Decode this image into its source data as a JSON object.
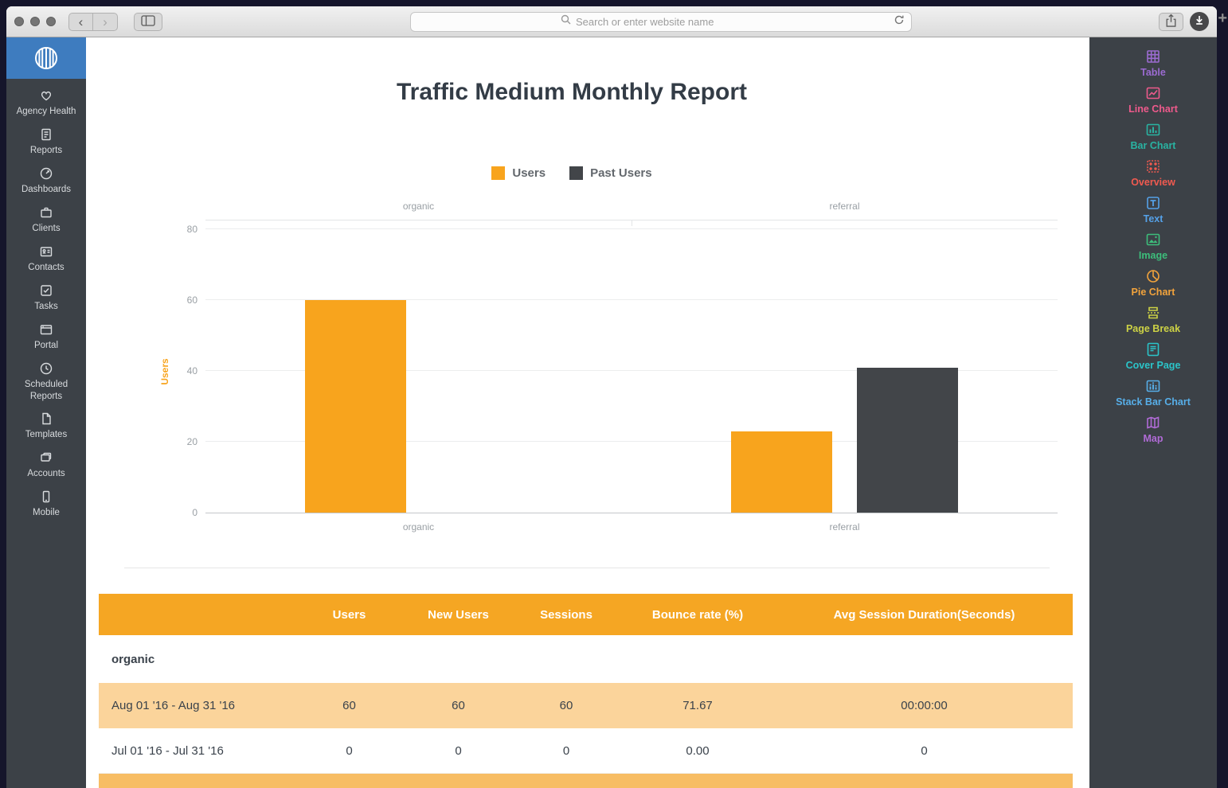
{
  "browser": {
    "url_placeholder": "Search or enter website name",
    "back_glyph": "‹",
    "forward_glyph": "›",
    "new_tab_glyph": "+"
  },
  "sidebar": {
    "items": [
      {
        "icon": "heart",
        "label": "Agency Health"
      },
      {
        "icon": "report",
        "label": "Reports"
      },
      {
        "icon": "gauge",
        "label": "Dashboards"
      },
      {
        "icon": "briefcase",
        "label": "Clients"
      },
      {
        "icon": "contact-card",
        "label": "Contacts"
      },
      {
        "icon": "check-square",
        "label": "Tasks"
      },
      {
        "icon": "window",
        "label": "Portal"
      },
      {
        "icon": "clock",
        "label": "Scheduled Reports"
      },
      {
        "icon": "document",
        "label": "Templates"
      },
      {
        "icon": "cards",
        "label": "Accounts"
      },
      {
        "icon": "phone",
        "label": "Mobile"
      }
    ]
  },
  "widgets": {
    "items": [
      {
        "icon": "grid",
        "label": "Table",
        "color": "#9B6BD1"
      },
      {
        "icon": "line-chart",
        "label": "Line Chart",
        "color": "#EE5A8C"
      },
      {
        "icon": "bar-chart",
        "label": "Bar Chart",
        "color": "#29B3A2"
      },
      {
        "icon": "overview",
        "label": "Overview",
        "color": "#F05A50"
      },
      {
        "icon": "text",
        "label": "Text",
        "color": "#55A1E8"
      },
      {
        "icon": "image",
        "label": "Image",
        "color": "#3DBE7B"
      },
      {
        "icon": "pie-chart",
        "label": "Pie Chart",
        "color": "#F2A33C"
      },
      {
        "icon": "page-break",
        "label": "Page Break",
        "color": "#CDD245"
      },
      {
        "icon": "cover-page",
        "label": "Cover Page",
        "color": "#2BC4C9"
      },
      {
        "icon": "stack-bar-chart",
        "label": "Stack Bar Chart",
        "color": "#57AEE8"
      },
      {
        "icon": "map",
        "label": "Map",
        "color": "#B06BD6"
      }
    ]
  },
  "chart_data": {
    "type": "bar",
    "title": "Traffic Medium Monthly Report",
    "categories": [
      "organic",
      "referral"
    ],
    "series": [
      {
        "name": "Users",
        "color": "#F8A41D",
        "values": [
          60,
          23
        ]
      },
      {
        "name": "Past Users",
        "color": "#424549",
        "values": [
          0,
          41
        ]
      }
    ],
    "xlabel": "",
    "ylabel": "Users",
    "ylabel_color": "#F8A41D",
    "ylim": [
      0,
      80
    ],
    "yticks": [
      0,
      20,
      40,
      60,
      80
    ],
    "legend_position": "top",
    "grid": true
  },
  "table": {
    "header_bg": "#F5A623",
    "highlight_bg": "#FBD49B",
    "strip_bg": "#F7BD64",
    "columns": [
      "",
      "Users",
      "New Users",
      "Sessions",
      "Bounce rate (%)",
      "Avg Session Duration(Seconds)"
    ],
    "rows": [
      {
        "type": "section",
        "label": "organic"
      },
      {
        "type": "data",
        "label": "Aug 01 '16 - Aug 31 '16",
        "values": [
          "60",
          "60",
          "60",
          "71.67",
          "00:00:00"
        ],
        "highlight": true
      },
      {
        "type": "data",
        "label": "Jul 01 '16 - Jul 31 '16",
        "values": [
          "0",
          "0",
          "0",
          "0.00",
          "0"
        ],
        "highlight": false
      },
      {
        "type": "strip"
      }
    ]
  }
}
